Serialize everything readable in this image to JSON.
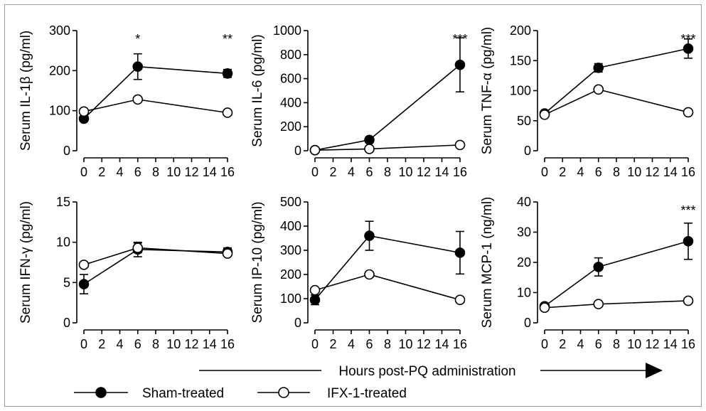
{
  "colors": {
    "ink": "#000000",
    "open_marker_fill": "#ffffff",
    "frame": "#9a9a9a"
  },
  "legend": {
    "sham": "Sham-treated",
    "ifx": "IFX-1-treated"
  },
  "xaxis_note": "Hours post-PQ administration",
  "chart_data": [
    {
      "type": "line",
      "ylabel": "Serum IL-1β (pg/ml)",
      "ylim": [
        0,
        300
      ],
      "yticks": [
        "0",
        "100",
        "200",
        "300"
      ],
      "xticks": [
        "0",
        "2",
        "4",
        "6",
        "8",
        "10",
        "12",
        "14",
        "16"
      ],
      "xlim": [
        0,
        16
      ],
      "significance": [
        {
          "x": 6,
          "label": "*"
        },
        {
          "x": 16,
          "label": "**"
        }
      ],
      "series": [
        {
          "name": "Sham-treated",
          "marker": "filled",
          "x": [
            0,
            6,
            16
          ],
          "y": [
            80,
            210,
            193
          ],
          "err": [
            6,
            32,
            10
          ]
        },
        {
          "name": "IFX-1-treated",
          "marker": "open",
          "x": [
            0,
            6,
            16
          ],
          "y": [
            98,
            128,
            95
          ],
          "err": [
            0,
            0,
            0
          ]
        }
      ]
    },
    {
      "type": "line",
      "ylabel": "Serum IL-6 (pg/ml)",
      "ylim": [
        0,
        1000
      ],
      "yticks": [
        "0",
        "200",
        "400",
        "600",
        "800",
        "1000"
      ],
      "xticks": [
        "0",
        "2",
        "4",
        "6",
        "8",
        "10",
        "12",
        "14",
        "16"
      ],
      "xlim": [
        0,
        16
      ],
      "significance": [
        {
          "x": 16,
          "label": "***"
        }
      ],
      "series": [
        {
          "name": "Sham-treated",
          "marker": "filled",
          "x": [
            0,
            6,
            16
          ],
          "y": [
            5,
            90,
            715
          ],
          "err": [
            0,
            12,
            225
          ]
        },
        {
          "name": "IFX-1-treated",
          "marker": "open",
          "x": [
            0,
            6,
            16
          ],
          "y": [
            5,
            15,
            48
          ],
          "err": [
            0,
            0,
            0
          ]
        }
      ]
    },
    {
      "type": "line",
      "ylabel": "Serum TNF-α (pg/ml)",
      "ylim": [
        0,
        200
      ],
      "yticks": [
        "0",
        "50",
        "100",
        "150",
        "200"
      ],
      "xticks": [
        "0",
        "2",
        "4",
        "6",
        "8",
        "10",
        "12",
        "14",
        "16"
      ],
      "xlim": [
        0,
        16
      ],
      "significance": [
        {
          "x": 16,
          "label": "***"
        }
      ],
      "series": [
        {
          "name": "Sham-treated",
          "marker": "filled",
          "x": [
            0,
            6,
            16
          ],
          "y": [
            62,
            138,
            170
          ],
          "err": [
            3,
            7,
            16
          ]
        },
        {
          "name": "IFX-1-treated",
          "marker": "open",
          "x": [
            0,
            6,
            16
          ],
          "y": [
            60,
            102,
            64
          ],
          "err": [
            0,
            0,
            0
          ]
        }
      ]
    },
    {
      "type": "line",
      "ylabel": "Serum IFN-γ (pg/ml)",
      "ylim": [
        0,
        15
      ],
      "yticks": [
        "0",
        "5",
        "10",
        "15"
      ],
      "xticks": [
        "0",
        "2",
        "4",
        "6",
        "8",
        "10",
        "12",
        "14",
        "16"
      ],
      "xlim": [
        0,
        16
      ],
      "significance": [],
      "series": [
        {
          "name": "Sham-treated",
          "marker": "filled",
          "x": [
            0,
            6,
            16
          ],
          "y": [
            4.8,
            9.1,
            8.8
          ],
          "err": [
            1.2,
            0.9,
            0.5
          ]
        },
        {
          "name": "IFX-1-treated",
          "marker": "open",
          "x": [
            0,
            6,
            16
          ],
          "y": [
            7.2,
            9.3,
            8.6
          ],
          "err": [
            0,
            0.6,
            0.3
          ]
        }
      ]
    },
    {
      "type": "line",
      "ylabel": "Serum IP-10 (pg/ml)",
      "ylim": [
        0,
        500
      ],
      "yticks": [
        "0",
        "100",
        "200",
        "300",
        "400",
        "500"
      ],
      "xticks": [
        "0",
        "2",
        "4",
        "6",
        "8",
        "10",
        "12",
        "14",
        "16"
      ],
      "xlim": [
        0,
        16
      ],
      "significance": [],
      "series": [
        {
          "name": "Sham-treated",
          "marker": "filled",
          "x": [
            0,
            6,
            16
          ],
          "y": [
            95,
            360,
            290
          ],
          "err": [
            20,
            60,
            88
          ]
        },
        {
          "name": "IFX-1-treated",
          "marker": "open",
          "x": [
            0,
            6,
            16
          ],
          "y": [
            135,
            200,
            95
          ],
          "err": [
            0,
            0,
            0
          ]
        }
      ]
    },
    {
      "type": "line",
      "ylabel": "Serum MCP-1 (ng/ml)",
      "ylim": [
        0,
        40
      ],
      "yticks": [
        "0",
        "10",
        "20",
        "30",
        "40"
      ],
      "xticks": [
        "0",
        "2",
        "4",
        "6",
        "8",
        "10",
        "12",
        "14",
        "16"
      ],
      "xlim": [
        0,
        16
      ],
      "significance": [
        {
          "x": 16,
          "label": "***"
        }
      ],
      "series": [
        {
          "name": "Sham-treated",
          "marker": "filled",
          "x": [
            0,
            6,
            16
          ],
          "y": [
            5.5,
            18.5,
            27
          ],
          "err": [
            0.5,
            3,
            6
          ]
        },
        {
          "name": "IFX-1-treated",
          "marker": "open",
          "x": [
            0,
            6,
            16
          ],
          "y": [
            5.0,
            6.2,
            7.3
          ],
          "err": [
            0,
            0,
            0
          ]
        }
      ]
    }
  ]
}
